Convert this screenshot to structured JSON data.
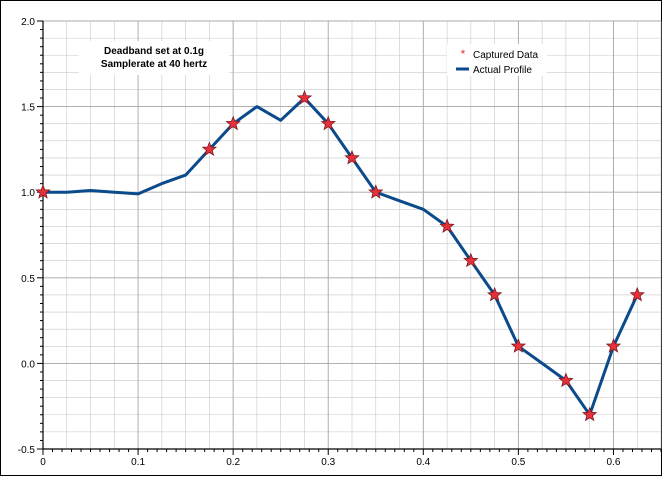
{
  "chart_data": {
    "type": "line",
    "title": "",
    "xlabel": "",
    "ylabel": "",
    "xlim": [
      0,
      0.65
    ],
    "ylim": [
      -0.5,
      2.0
    ],
    "grid": true,
    "legend_position": "top-right",
    "x_ticks": [
      "0",
      "0.1",
      "0.2",
      "0.3",
      "0.4",
      "0.5",
      "0.6"
    ],
    "x_tick_values": [
      0,
      0.1,
      0.2,
      0.3,
      0.4,
      0.5,
      0.6
    ],
    "y_ticks": [
      "-0.5",
      "0.0",
      "0.5",
      "1.0",
      "1.5",
      "2.0"
    ],
    "y_tick_values": [
      -0.5,
      0.0,
      0.5,
      1.0,
      1.5,
      2.0
    ],
    "annotations": [
      "Deadband set at 0.1g",
      "Samplerate at 40 hertz"
    ],
    "series": [
      {
        "name": "Captured Data",
        "style": "markers",
        "marker": "star",
        "color": "#e8303a",
        "x": [
          0,
          0.175,
          0.2,
          0.275,
          0.3,
          0.325,
          0.35,
          0.425,
          0.45,
          0.475,
          0.5,
          0.55,
          0.575,
          0.6,
          0.625
        ],
        "y": [
          1.0,
          1.25,
          1.4,
          1.55,
          1.4,
          1.2,
          1.0,
          0.8,
          0.6,
          0.4,
          0.1,
          -0.1,
          -0.3,
          0.1,
          0.4
        ]
      },
      {
        "name": "Actual Profile",
        "style": "line",
        "color": "#0b4a8b",
        "x": [
          0,
          0.025,
          0.05,
          0.075,
          0.1,
          0.125,
          0.15,
          0.175,
          0.2,
          0.225,
          0.25,
          0.275,
          0.3,
          0.325,
          0.35,
          0.375,
          0.4,
          0.425,
          0.45,
          0.475,
          0.5,
          0.525,
          0.55,
          0.575,
          0.6,
          0.625
        ],
        "y": [
          1.0,
          1.0,
          1.01,
          1.0,
          0.99,
          1.05,
          1.1,
          1.25,
          1.4,
          1.5,
          1.42,
          1.55,
          1.4,
          1.2,
          1.0,
          0.95,
          0.9,
          0.8,
          0.6,
          0.4,
          0.1,
          0.0,
          -0.1,
          -0.3,
          0.1,
          0.4
        ]
      }
    ]
  }
}
